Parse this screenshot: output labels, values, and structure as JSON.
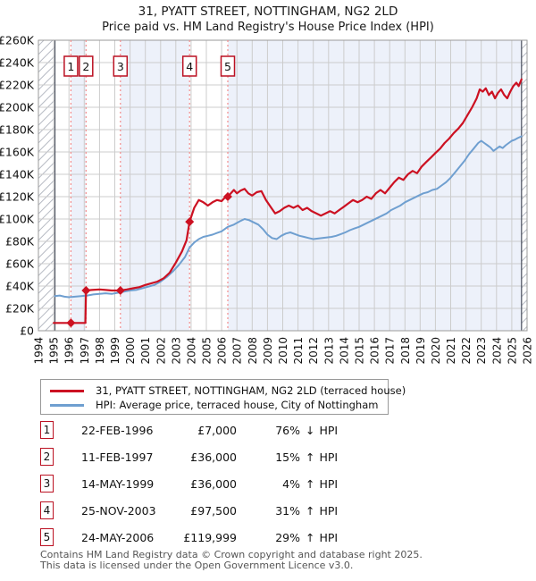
{
  "title": "31, PYATT STREET, NOTTINGHAM, NG2 2LD",
  "subtitle": "Price paid vs. HM Land Registry's House Price Index (HPI)",
  "legend": [
    {
      "label": "31, PYATT STREET, NOTTINGHAM, NG2 2LD (terraced house)",
      "color": "#cc1122"
    },
    {
      "label": "HPI: Average price, terraced house, City of Nottingham",
      "color": "#6f9fd0"
    }
  ],
  "transactions": [
    {
      "label": "1",
      "date": "22-FEB-1996",
      "price_str": "£7,000",
      "pct": "76%",
      "dir": "↓",
      "rel": "HPI"
    },
    {
      "label": "2",
      "date": "11-FEB-1997",
      "price_str": "£36,000",
      "pct": "15%",
      "dir": "↑",
      "rel": "HPI"
    },
    {
      "label": "3",
      "date": "14-MAY-1999",
      "price_str": "£36,000",
      "pct": "4%",
      "dir": "↑",
      "rel": "HPI"
    },
    {
      "label": "4",
      "date": "25-NOV-2003",
      "price_str": "£97,500",
      "pct": "31%",
      "dir": "↑",
      "rel": "HPI"
    },
    {
      "label": "5",
      "date": "24-MAY-2006",
      "price_str": "£119,999",
      "pct": "29%",
      "dir": "↑",
      "rel": "HPI"
    }
  ],
  "footer": {
    "line1": "Contains HM Land Registry data © Crown copyright and database right 2025.",
    "line2": "This data is licensed under the Open Government Licence v3.0."
  },
  "chart_data": {
    "type": "line",
    "title": "31, PYATT STREET, NOTTINGHAM, NG2 2LD",
    "subtitle": "Price paid vs. HM Land Registry's House Price Index (HPI)",
    "x_axis": {
      "min": 1994,
      "max": 2026,
      "tick_every": 1,
      "label_rotation": -90
    },
    "y_axis": {
      "min": 0,
      "max": 260000,
      "step": 20000,
      "currency": "£",
      "unit": "K"
    },
    "grid": true,
    "band_color": "#edf1fa",
    "grid_color": "#cccccc",
    "frame_color": "#9a9a9a",
    "boundary_color": "#4a4f5d",
    "dotted_color": "#f28b8b",
    "data_start_x": 1995.08,
    "data_end_x": 2025.64,
    "shaded_bands": [
      [
        1996.13,
        1997.12
      ],
      [
        1999.37,
        2003.9
      ],
      [
        2006.4,
        2025.64
      ]
    ],
    "sales": [
      {
        "label": "1",
        "x": 1996.13,
        "price": 7000,
        "date": "22-FEB-1996"
      },
      {
        "label": "2",
        "x": 1997.12,
        "price": 36000,
        "date": "11-FEB-1997"
      },
      {
        "label": "3",
        "x": 1999.37,
        "price": 36000,
        "date": "14-MAY-1999"
      },
      {
        "label": "4",
        "x": 2003.9,
        "price": 97500,
        "date": "25-NOV-2003"
      },
      {
        "label": "5",
        "x": 2006.4,
        "price": 119999,
        "date": "24-MAY-2006"
      }
    ],
    "series": [
      {
        "name": "31, PYATT STREET, NOTTINGHAM, NG2 2LD (terraced house)",
        "color": "#cc1122",
        "width": 2.2,
        "points": [
          [
            1995.0,
            7000
          ],
          [
            1995.35,
            7000
          ],
          [
            1995.7,
            7000
          ],
          [
            1996.13,
            7000
          ],
          [
            1996.5,
            7000
          ],
          [
            1996.85,
            7000
          ],
          [
            1997.08,
            7000
          ],
          [
            1997.12,
            36000
          ],
          [
            1997.5,
            36500
          ],
          [
            1998.0,
            37000
          ],
          [
            1998.4,
            36500
          ],
          [
            1998.8,
            36000
          ],
          [
            1999.37,
            36000
          ],
          [
            1999.8,
            37000
          ],
          [
            2000.2,
            38000
          ],
          [
            2000.6,
            39000
          ],
          [
            2001.0,
            41000
          ],
          [
            2001.4,
            42500
          ],
          [
            2001.8,
            44000
          ],
          [
            2002.2,
            47000
          ],
          [
            2002.6,
            52000
          ],
          [
            2003.0,
            61000
          ],
          [
            2003.4,
            71000
          ],
          [
            2003.7,
            81000
          ],
          [
            2003.9,
            97500
          ],
          [
            2004.2,
            110000
          ],
          [
            2004.5,
            117000
          ],
          [
            2004.8,
            115000
          ],
          [
            2005.1,
            112000
          ],
          [
            2005.4,
            115000
          ],
          [
            2005.7,
            117000
          ],
          [
            2006.0,
            116000
          ],
          [
            2006.2,
            119000
          ],
          [
            2006.4,
            119999
          ],
          [
            2006.6,
            123000
          ],
          [
            2006.8,
            126000
          ],
          [
            2007.0,
            123000
          ],
          [
            2007.25,
            125500
          ],
          [
            2007.5,
            127000
          ],
          [
            2007.75,
            123000
          ],
          [
            2008.0,
            121000
          ],
          [
            2008.3,
            124000
          ],
          [
            2008.6,
            125000
          ],
          [
            2008.9,
            117000
          ],
          [
            2009.2,
            111000
          ],
          [
            2009.5,
            105000
          ],
          [
            2009.8,
            107000
          ],
          [
            2010.1,
            110000
          ],
          [
            2010.4,
            112000
          ],
          [
            2010.7,
            110000
          ],
          [
            2011.0,
            112000
          ],
          [
            2011.3,
            108000
          ],
          [
            2011.6,
            110000
          ],
          [
            2011.9,
            107000
          ],
          [
            2012.2,
            105000
          ],
          [
            2012.5,
            103000
          ],
          [
            2012.8,
            105000
          ],
          [
            2013.1,
            107000
          ],
          [
            2013.4,
            105000
          ],
          [
            2013.7,
            108000
          ],
          [
            2014.0,
            111000
          ],
          [
            2014.3,
            114000
          ],
          [
            2014.6,
            117000
          ],
          [
            2014.9,
            115000
          ],
          [
            2015.2,
            117000
          ],
          [
            2015.5,
            120000
          ],
          [
            2015.8,
            118000
          ],
          [
            2016.1,
            123000
          ],
          [
            2016.4,
            126000
          ],
          [
            2016.7,
            123000
          ],
          [
            2017.0,
            128000
          ],
          [
            2017.3,
            133000
          ],
          [
            2017.6,
            137000
          ],
          [
            2017.9,
            135000
          ],
          [
            2018.2,
            140000
          ],
          [
            2018.5,
            143000
          ],
          [
            2018.8,
            141000
          ],
          [
            2019.1,
            147000
          ],
          [
            2019.4,
            151000
          ],
          [
            2019.7,
            155000
          ],
          [
            2020.0,
            159000
          ],
          [
            2020.3,
            163000
          ],
          [
            2020.6,
            168000
          ],
          [
            2020.9,
            172000
          ],
          [
            2021.2,
            177000
          ],
          [
            2021.5,
            181000
          ],
          [
            2021.8,
            186000
          ],
          [
            2022.1,
            193000
          ],
          [
            2022.4,
            200000
          ],
          [
            2022.7,
            208000
          ],
          [
            2022.9,
            216000
          ],
          [
            2023.1,
            214000
          ],
          [
            2023.3,
            217000
          ],
          [
            2023.5,
            211000
          ],
          [
            2023.7,
            214000
          ],
          [
            2023.9,
            208000
          ],
          [
            2024.1,
            213000
          ],
          [
            2024.3,
            216000
          ],
          [
            2024.5,
            211000
          ],
          [
            2024.7,
            208000
          ],
          [
            2024.9,
            214000
          ],
          [
            2025.1,
            219000
          ],
          [
            2025.3,
            222000
          ],
          [
            2025.45,
            219000
          ],
          [
            2025.64,
            225000
          ]
        ]
      },
      {
        "name": "HPI: Average price, terraced house, City of Nottingham",
        "color": "#6f9fd0",
        "width": 2,
        "points": [
          [
            1995.08,
            31000
          ],
          [
            1995.4,
            31500
          ],
          [
            1995.7,
            30500
          ],
          [
            1996.0,
            30000
          ],
          [
            1996.4,
            30500
          ],
          [
            1996.8,
            31000
          ],
          [
            1997.2,
            31500
          ],
          [
            1997.6,
            32500
          ],
          [
            1998.0,
            33000
          ],
          [
            1998.4,
            33500
          ],
          [
            1998.8,
            33000
          ],
          [
            1999.2,
            34000
          ],
          [
            1999.6,
            35000
          ],
          [
            2000.0,
            36000
          ],
          [
            2000.4,
            36500
          ],
          [
            2000.8,
            38000
          ],
          [
            2001.2,
            39500
          ],
          [
            2001.6,
            41000
          ],
          [
            2002.0,
            44000
          ],
          [
            2002.4,
            48000
          ],
          [
            2002.8,
            53000
          ],
          [
            2003.2,
            59000
          ],
          [
            2003.6,
            66000
          ],
          [
            2003.9,
            74500
          ],
          [
            2004.2,
            79000
          ],
          [
            2004.5,
            82000
          ],
          [
            2004.8,
            84000
          ],
          [
            2005.1,
            85000
          ],
          [
            2005.4,
            86000
          ],
          [
            2005.7,
            87500
          ],
          [
            2006.0,
            89000
          ],
          [
            2006.4,
            93000
          ],
          [
            2006.8,
            95000
          ],
          [
            2007.2,
            98000
          ],
          [
            2007.5,
            100000
          ],
          [
            2007.8,
            99000
          ],
          [
            2008.1,
            97000
          ],
          [
            2008.4,
            95000
          ],
          [
            2008.7,
            91000
          ],
          [
            2009.0,
            86000
          ],
          [
            2009.3,
            83000
          ],
          [
            2009.6,
            82000
          ],
          [
            2009.9,
            85000
          ],
          [
            2010.2,
            87000
          ],
          [
            2010.5,
            88000
          ],
          [
            2010.8,
            86500
          ],
          [
            2011.1,
            85000
          ],
          [
            2011.4,
            84000
          ],
          [
            2011.7,
            83000
          ],
          [
            2012.0,
            82000
          ],
          [
            2012.3,
            82500
          ],
          [
            2012.6,
            83000
          ],
          [
            2012.9,
            83500
          ],
          [
            2013.2,
            84000
          ],
          [
            2013.5,
            85000
          ],
          [
            2013.8,
            86500
          ],
          [
            2014.1,
            88000
          ],
          [
            2014.4,
            90000
          ],
          [
            2014.7,
            91500
          ],
          [
            2015.0,
            93000
          ],
          [
            2015.3,
            95000
          ],
          [
            2015.6,
            97000
          ],
          [
            2015.9,
            99000
          ],
          [
            2016.2,
            101000
          ],
          [
            2016.5,
            103000
          ],
          [
            2016.8,
            105000
          ],
          [
            2017.1,
            108000
          ],
          [
            2017.4,
            110000
          ],
          [
            2017.7,
            112000
          ],
          [
            2018.0,
            115000
          ],
          [
            2018.3,
            117000
          ],
          [
            2018.6,
            119000
          ],
          [
            2018.9,
            121000
          ],
          [
            2019.2,
            123000
          ],
          [
            2019.5,
            124000
          ],
          [
            2019.8,
            126000
          ],
          [
            2020.1,
            127000
          ],
          [
            2020.4,
            130000
          ],
          [
            2020.7,
            133000
          ],
          [
            2021.0,
            137000
          ],
          [
            2021.3,
            142000
          ],
          [
            2021.6,
            147000
          ],
          [
            2021.9,
            152000
          ],
          [
            2022.2,
            158000
          ],
          [
            2022.5,
            163000
          ],
          [
            2022.8,
            168000
          ],
          [
            2023.0,
            170000
          ],
          [
            2023.2,
            168000
          ],
          [
            2023.4,
            166000
          ],
          [
            2023.6,
            164000
          ],
          [
            2023.8,
            161000
          ],
          [
            2024.0,
            163000
          ],
          [
            2024.2,
            165000
          ],
          [
            2024.4,
            163500
          ],
          [
            2024.6,
            166000
          ],
          [
            2024.8,
            168000
          ],
          [
            2025.0,
            170000
          ],
          [
            2025.2,
            171000
          ],
          [
            2025.4,
            172500
          ],
          [
            2025.64,
            174000
          ]
        ]
      }
    ]
  }
}
